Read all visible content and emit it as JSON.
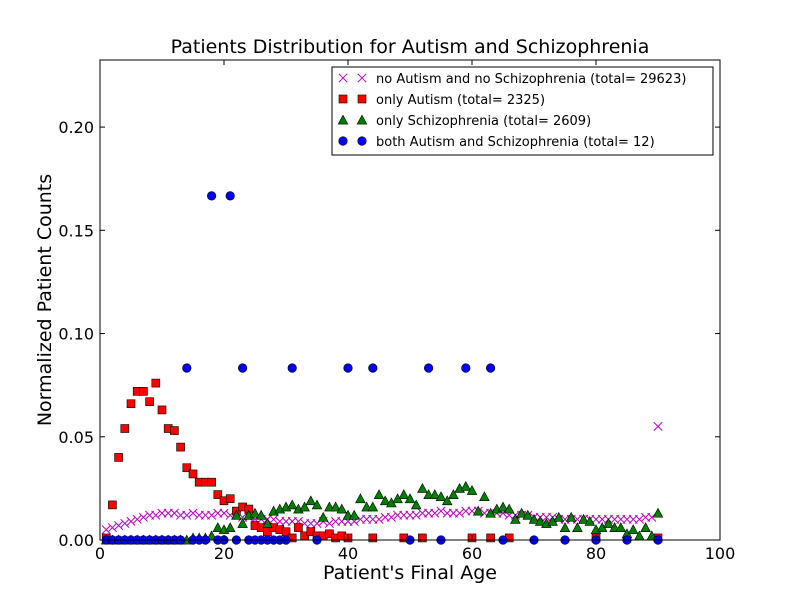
{
  "chart_data": {
    "type": "scatter",
    "title": "Patients Distribution for Autism and Schizophrenia",
    "xlabel": "Patient's Final Age",
    "ylabel": "Normalized Patient Counts",
    "xlim": [
      0,
      100
    ],
    "ylim": [
      0,
      0.2325
    ],
    "xticks": [
      0,
      20,
      40,
      60,
      80,
      100
    ],
    "yticks": [
      0.0,
      0.05,
      0.1,
      0.15,
      0.2
    ],
    "xtick_labels": [
      "0",
      "20",
      "40",
      "60",
      "80",
      "100"
    ],
    "ytick_labels": [
      "0.00",
      "0.05",
      "0.10",
      "0.15",
      "0.20"
    ],
    "grid": false,
    "legend_position": "top-right",
    "series": [
      {
        "name": "no Autism and no Schizophrenia (total= 29623)",
        "marker": "x",
        "color": "#bf00bf",
        "x": [
          1,
          2,
          3,
          4,
          5,
          6,
          7,
          8,
          9,
          10,
          11,
          12,
          13,
          14,
          15,
          16,
          17,
          18,
          19,
          20,
          21,
          22,
          23,
          24,
          25,
          26,
          27,
          28,
          29,
          30,
          31,
          32,
          33,
          34,
          35,
          36,
          37,
          38,
          39,
          40,
          41,
          42,
          43,
          44,
          45,
          46,
          47,
          48,
          49,
          50,
          51,
          52,
          53,
          54,
          55,
          56,
          57,
          58,
          59,
          60,
          61,
          62,
          63,
          64,
          65,
          66,
          67,
          68,
          69,
          70,
          71,
          72,
          73,
          74,
          75,
          76,
          77,
          78,
          79,
          80,
          81,
          82,
          83,
          84,
          85,
          86,
          87,
          88,
          89,
          90
        ],
        "y": [
          0.005,
          0.006,
          0.007,
          0.008,
          0.009,
          0.01,
          0.011,
          0.012,
          0.012,
          0.013,
          0.013,
          0.013,
          0.012,
          0.012,
          0.013,
          0.012,
          0.012,
          0.012,
          0.013,
          0.013,
          0.012,
          0.012,
          0.011,
          0.011,
          0.01,
          0.01,
          0.01,
          0.01,
          0.009,
          0.009,
          0.009,
          0.009,
          0.008,
          0.008,
          0.008,
          0.009,
          0.008,
          0.009,
          0.009,
          0.009,
          0.009,
          0.01,
          0.01,
          0.01,
          0.01,
          0.011,
          0.011,
          0.012,
          0.012,
          0.012,
          0.012,
          0.013,
          0.013,
          0.013,
          0.014,
          0.013,
          0.013,
          0.013,
          0.014,
          0.014,
          0.014,
          0.013,
          0.013,
          0.013,
          0.013,
          0.012,
          0.012,
          0.012,
          0.012,
          0.011,
          0.011,
          0.011,
          0.011,
          0.01,
          0.01,
          0.01,
          0.01,
          0.01,
          0.01,
          0.01,
          0.01,
          0.01,
          0.01,
          0.01,
          0.01,
          0.01,
          0.01,
          0.011,
          0.011,
          0.055
        ]
      },
      {
        "name": "only Autism (total= 2325)",
        "marker": "square",
        "color": "#ff0000",
        "x": [
          1,
          2,
          3,
          4,
          5,
          6,
          7,
          8,
          9,
          10,
          11,
          12,
          13,
          14,
          15,
          16,
          17,
          18,
          19,
          20,
          21,
          22,
          23,
          24,
          25,
          26,
          27,
          28,
          29,
          30,
          31,
          32,
          33,
          34,
          35,
          36,
          37,
          38,
          39,
          40,
          44,
          49,
          52,
          60,
          63,
          66,
          80,
          90
        ],
        "y": [
          0.001,
          0.017,
          0.04,
          0.054,
          0.066,
          0.072,
          0.072,
          0.067,
          0.076,
          0.063,
          0.054,
          0.053,
          0.045,
          0.035,
          0.032,
          0.028,
          0.028,
          0.028,
          0.022,
          0.019,
          0.02,
          0.014,
          0.016,
          0.015,
          0.007,
          0.006,
          0.004,
          0.006,
          0.005,
          0.004,
          0.001,
          0.006,
          0.002,
          0.004,
          0.002,
          0.002,
          0.003,
          0.001,
          0.002,
          0.001,
          0.001,
          0.001,
          0.001,
          0.001,
          0.001,
          0.001,
          0.001,
          0.001
        ]
      },
      {
        "name": "only Schizophrenia (total= 2609)",
        "marker": "triangle",
        "color": "#007f00",
        "x": [
          1,
          2,
          3,
          4,
          5,
          6,
          7,
          8,
          9,
          10,
          11,
          12,
          13,
          14,
          15,
          16,
          17,
          18,
          19,
          20,
          21,
          22,
          23,
          24,
          25,
          26,
          27,
          28,
          29,
          30,
          31,
          32,
          33,
          34,
          35,
          36,
          37,
          38,
          39,
          40,
          41,
          42,
          43,
          44,
          45,
          46,
          47,
          48,
          49,
          50,
          51,
          52,
          53,
          54,
          55,
          56,
          57,
          58,
          59,
          60,
          61,
          62,
          63,
          64,
          65,
          66,
          67,
          68,
          69,
          70,
          71,
          72,
          73,
          74,
          75,
          76,
          77,
          78,
          79,
          80,
          81,
          82,
          83,
          84,
          85,
          86,
          87,
          88,
          89,
          90
        ],
        "y": [
          0,
          0,
          0,
          0,
          0,
          0,
          0,
          0,
          0,
          0,
          0,
          0,
          0,
          0,
          0.001,
          0.001,
          0.001,
          0.002,
          0.006,
          0.005,
          0.006,
          0.012,
          0.008,
          0.012,
          0.013,
          0.012,
          0.008,
          0.014,
          0.015,
          0.016,
          0.017,
          0.015,
          0.016,
          0.019,
          0.017,
          0.011,
          0.016,
          0.016,
          0.015,
          0.012,
          0.012,
          0.02,
          0.016,
          0.016,
          0.022,
          0.019,
          0.018,
          0.02,
          0.022,
          0.02,
          0.017,
          0.025,
          0.022,
          0.022,
          0.021,
          0.019,
          0.022,
          0.025,
          0.026,
          0.024,
          0.014,
          0.021,
          0.013,
          0.015,
          0.016,
          0.015,
          0.01,
          0.013,
          0.012,
          0.01,
          0.009,
          0.008,
          0.009,
          0.011,
          0.006,
          0.011,
          0.006,
          0.01,
          0.009,
          0.005,
          0.006,
          0.008,
          0.006,
          0.006,
          0.003,
          0.005,
          0.002,
          0.006,
          0.002,
          0.013
        ]
      },
      {
        "name": "both Autism and Schizophrenia (total= 12)",
        "marker": "circle",
        "color": "#0000ff",
        "x": [
          1,
          2,
          3,
          4,
          5,
          6,
          7,
          8,
          9,
          10,
          11,
          12,
          13,
          14,
          15,
          16,
          17,
          18,
          19,
          20,
          21,
          22,
          23,
          24,
          25,
          26,
          27,
          28,
          29,
          30,
          31,
          35,
          40,
          44,
          50,
          53,
          55,
          59,
          63,
          65,
          70,
          75,
          80,
          85,
          90
        ],
        "y": [
          0,
          0,
          0,
          0,
          0,
          0,
          0,
          0,
          0,
          0,
          0,
          0,
          0,
          0.0833,
          0,
          0,
          0,
          0.1667,
          0,
          0,
          0.1667,
          0,
          0.0833,
          0,
          0,
          0,
          0,
          0,
          0,
          0,
          0.0833,
          0,
          0.0833,
          0.0833,
          0,
          0.0833,
          0,
          0.0833,
          0.0833,
          0,
          0,
          0,
          0,
          0,
          0
        ]
      }
    ]
  }
}
